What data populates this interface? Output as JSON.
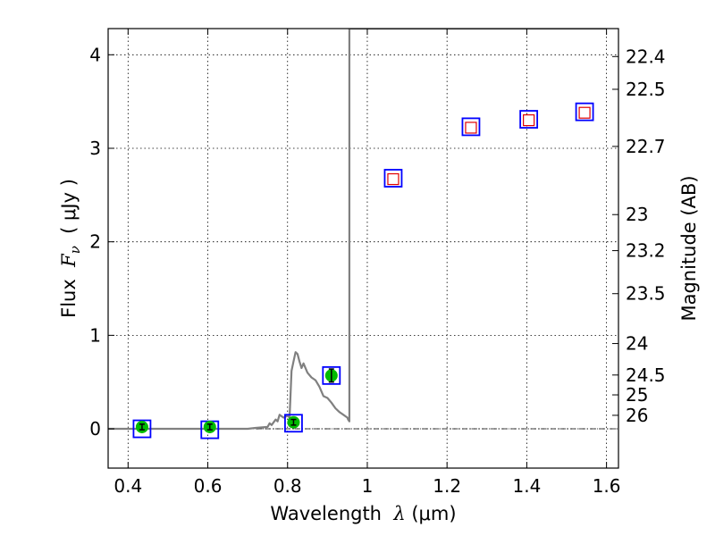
{
  "chart_data": {
    "type": "scatter",
    "xlabel_parts": {
      "text": "Wavelength  ",
      "math": "λ",
      "unit": " (μm)"
    },
    "ylabel_parts": {
      "text": "Flux  ",
      "math": "F",
      "sub": "ν",
      "unit": "  ( μJy )"
    },
    "y2label": "Magnitude (AB)",
    "xlim": [
      0.35,
      1.63
    ],
    "ylim": [
      -0.42,
      4.28
    ],
    "grid": true,
    "x_ticks": [
      {
        "value": 0.4,
        "label": "0.4"
      },
      {
        "value": 0.6,
        "label": "0.6"
      },
      {
        "value": 0.8,
        "label": "0.8"
      },
      {
        "value": 1.0,
        "label": "1"
      },
      {
        "value": 1.2,
        "label": "1.2"
      },
      {
        "value": 1.4,
        "label": "1.4"
      },
      {
        "value": 1.6,
        "label": "1.6"
      }
    ],
    "y_ticks": [
      {
        "value": 0,
        "label": "0"
      },
      {
        "value": 1,
        "label": "1"
      },
      {
        "value": 2,
        "label": "2"
      },
      {
        "value": 3,
        "label": "3"
      },
      {
        "value": 4,
        "label": "4"
      }
    ],
    "y2_ticks": [
      {
        "value": 22.4,
        "label": "22.4"
      },
      {
        "value": 22.5,
        "label": "22.5"
      },
      {
        "value": 22.7,
        "label": "22.7"
      },
      {
        "value": 23,
        "label": "23"
      },
      {
        "value": 23.2,
        "label": "23.2"
      },
      {
        "value": 23.5,
        "label": "23.5"
      },
      {
        "value": 24,
        "label": "24"
      },
      {
        "value": 24.5,
        "label": "24.5"
      },
      {
        "value": 25,
        "label": "25"
      },
      {
        "value": 26,
        "label": "26"
      }
    ],
    "model_spectrum": {
      "color": "#808080",
      "x": [
        0.35,
        0.7,
        0.72,
        0.75,
        0.755,
        0.76,
        0.77,
        0.775,
        0.78,
        0.79,
        0.8,
        0.805,
        0.81,
        0.815,
        0.82,
        0.825,
        0.83,
        0.835,
        0.84,
        0.85,
        0.86,
        0.87,
        0.88,
        0.89,
        0.9,
        0.91,
        0.92,
        0.93,
        0.94,
        0.95,
        0.952,
        0.955,
        0.955,
        0.958,
        1.0,
        1.6
      ],
      "y": [
        0.0,
        0.0,
        0.01,
        0.02,
        0.06,
        0.04,
        0.1,
        0.08,
        0.15,
        0.12,
        0.14,
        0.12,
        0.62,
        0.72,
        0.82,
        0.8,
        0.72,
        0.65,
        0.7,
        0.6,
        0.55,
        0.52,
        0.45,
        0.35,
        0.33,
        0.28,
        0.22,
        0.18,
        0.15,
        0.12,
        0.1,
        0.08,
        4.28,
        4.28,
        4.28,
        4.28
      ]
    },
    "band_boxes": {
      "edge_color": "#0000ff",
      "x": [
        0.435,
        0.605,
        0.815,
        0.91,
        1.065,
        1.26,
        1.405,
        1.545
      ],
      "y": [
        0.0,
        -0.01,
        0.06,
        0.57,
        2.68,
        3.23,
        3.31,
        3.39
      ]
    },
    "observed_flux": {
      "color": "#00bb00",
      "x": [
        0.435,
        0.605,
        0.815,
        0.91
      ],
      "y": [
        0.02,
        0.02,
        0.07,
        0.57
      ],
      "yerr": [
        0.03,
        0.03,
        0.03,
        0.07
      ]
    },
    "upper_limits": {
      "color": "#e00000",
      "x": [
        1.065,
        1.26,
        1.405,
        1.545
      ],
      "y": [
        2.67,
        3.22,
        3.3,
        3.38
      ]
    }
  }
}
